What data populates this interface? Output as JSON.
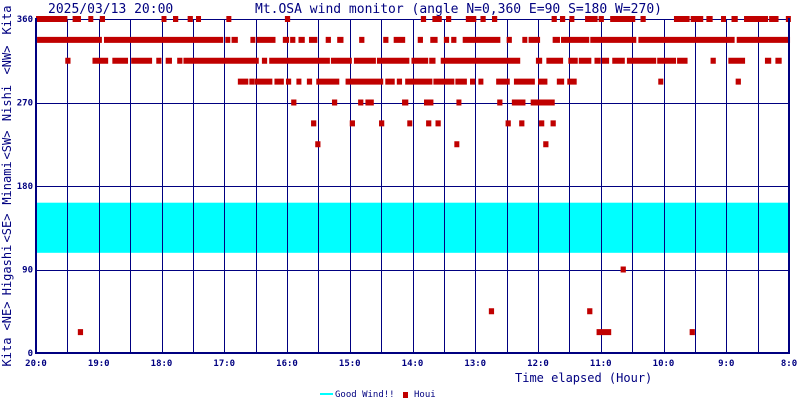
{
  "header": {
    "datetime": "2025/03/13 20:00",
    "title": "Mt.OSA wind monitor (angle N=0,360 E=90 S=180 W=270)"
  },
  "chart_data": {
    "type": "scatter",
    "title": "Mt.OSA wind monitor (angle N=0,360 E=90 S=180 W=270)",
    "xlabel": "Time elapsed (Hour)",
    "ylabel_words": [
      "Kita",
      "<NE>",
      "Higashi",
      "<SE>",
      "Minami",
      "<SW>",
      "Nishi",
      "<NW>",
      "Kita"
    ],
    "ylim": [
      0,
      360
    ],
    "xlim_minutes": [
      0,
      720
    ],
    "y_ticks": [
      "0",
      "90",
      "180",
      "270",
      "360"
    ],
    "y_tick_values": [
      0,
      90,
      180,
      270,
      360
    ],
    "x_ticks": [
      "20:0",
      "19:0",
      "18:0",
      "17:0",
      "16:0",
      "15:0",
      "14:0",
      "13:0",
      "12:0",
      "11:0",
      "10:0",
      "9:0",
      "8:0"
    ],
    "grid": true,
    "legend": [
      {
        "label": "Good Wind!!",
        "color": "#00ffff",
        "kind": "line"
      },
      {
        "label": "Houi",
        "color": "#c00000",
        "kind": "square"
      }
    ],
    "legend_placement": "bottom-center",
    "good_wind_range": [
      108,
      162
    ],
    "series": [
      {
        "name": "Houi",
        "color": "#c00000",
        "note": "segments are [start_minute, end_minute] elapsed since 20:00 at the given angle",
        "rows": [
          {
            "angle": 360,
            "segments": [
              [
                0,
                30
              ],
              [
                35,
                43
              ],
              [
                50,
                54
              ],
              [
                61,
                66
              ],
              [
                120,
                124
              ],
              [
                131,
                136
              ],
              [
                145,
                150
              ],
              [
                153,
                157
              ],
              [
                182,
                186
              ],
              [
                238,
                243
              ],
              [
                368,
                373
              ],
              [
                379,
                388
              ],
              [
                392,
                397
              ],
              [
                411,
                421
              ],
              [
                425,
                430
              ],
              [
                436,
                441
              ],
              [
                493,
                498
              ],
              [
                501,
                506
              ],
              [
                510,
                514
              ],
              [
                525,
                537
              ],
              [
                538,
                543
              ],
              [
                549,
                573
              ],
              [
                578,
                583
              ],
              [
                610,
                625
              ],
              [
                626,
                638
              ],
              [
                641,
                647
              ],
              [
                655,
                659
              ],
              [
                665,
                671
              ],
              [
                677,
                700
              ],
              [
                701,
                710
              ],
              [
                717,
                720
              ]
            ]
          },
          {
            "angle": 337.5,
            "segments": [
              [
                1,
                63
              ],
              [
                65,
                179
              ],
              [
                181,
                185
              ],
              [
                187,
                193
              ],
              [
                205,
                209
              ],
              [
                211,
                229
              ],
              [
                236,
                242
              ],
              [
                243,
                248
              ],
              [
                251,
                257
              ],
              [
                261,
                269
              ],
              [
                277,
                282
              ],
              [
                288,
                294
              ],
              [
                309,
                314
              ],
              [
                332,
                337
              ],
              [
                342,
                353
              ],
              [
                365,
                370
              ],
              [
                377,
                384
              ],
              [
                390,
                395
              ],
              [
                397,
                402
              ],
              [
                408,
                444
              ],
              [
                450,
                455
              ],
              [
                465,
                469
              ],
              [
                471,
                482
              ],
              [
                494,
                501
              ],
              [
                502,
                529
              ],
              [
                530,
                574
              ],
              [
                576,
                668
              ],
              [
                670,
                721
              ]
            ]
          },
          {
            "angle": 315,
            "segments": [
              [
                28,
                33
              ],
              [
                54,
                69
              ],
              [
                73,
                88
              ],
              [
                91,
                111
              ],
              [
                115,
                120
              ],
              [
                124,
                130
              ],
              [
                135,
                140
              ],
              [
                141,
                213
              ],
              [
                216,
                221
              ],
              [
                223,
                281
              ],
              [
                282,
                302
              ],
              [
                304,
                325
              ],
              [
                326,
                357
              ],
              [
                359,
                375
              ],
              [
                376,
                382
              ],
              [
                387,
                463
              ],
              [
                478,
                484
              ],
              [
                488,
                504
              ],
              [
                509,
                518
              ],
              [
                519,
                531
              ],
              [
                534,
                540
              ],
              [
                541,
                548
              ],
              [
                551,
                563
              ],
              [
                565,
                593
              ],
              [
                594,
                612
              ],
              [
                613,
                623
              ],
              [
                645,
                650
              ],
              [
                662,
                678
              ],
              [
                697,
                703
              ],
              [
                707,
                713
              ]
            ]
          },
          {
            "angle": 292.5,
            "segments": [
              [
                193,
                203
              ],
              [
                204,
                208
              ],
              [
                209,
                226
              ],
              [
                228,
                237
              ],
              [
                239,
                244
              ],
              [
                249,
                253
              ],
              [
                259,
                264
              ],
              [
                268,
                290
              ],
              [
                296,
                332
              ],
              [
                334,
                343
              ],
              [
                345,
                350
              ],
              [
                353,
                379
              ],
              [
                380,
                400
              ],
              [
                401,
                412
              ],
              [
                415,
                420
              ],
              [
                423,
                427
              ],
              [
                440,
                453
              ],
              [
                457,
                477
              ],
              [
                480,
                489
              ],
              [
                498,
                505
              ],
              [
                508,
                517
              ],
              [
                595,
                599
              ],
              [
                669,
                674
              ]
            ]
          },
          {
            "angle": 270,
            "segments": [
              [
                244,
                249
              ],
              [
                283,
                288
              ],
              [
                308,
                313
              ],
              [
                315,
                323
              ],
              [
                350,
                356
              ],
              [
                371,
                380
              ],
              [
                402,
                406
              ],
              [
                441,
                446
              ],
              [
                455,
                468
              ],
              [
                473,
                496
              ]
            ]
          },
          {
            "angle": 247.5,
            "segments": [
              [
                263,
                268
              ],
              [
                300,
                305
              ],
              [
                328,
                333
              ],
              [
                355,
                359
              ],
              [
                373,
                378
              ],
              [
                382,
                387
              ],
              [
                449,
                454
              ],
              [
                462,
                467
              ],
              [
                481,
                486
              ],
              [
                492,
                497
              ]
            ]
          },
          {
            "angle": 225,
            "segments": [
              [
                267,
                272
              ],
              [
                400,
                404
              ],
              [
                485,
                490
              ]
            ]
          },
          {
            "angle": 90,
            "segments": [
              [
                559,
                564
              ]
            ]
          },
          {
            "angle": 45,
            "segments": [
              [
                433,
                438
              ],
              [
                527,
                532
              ]
            ]
          },
          {
            "angle": 22.5,
            "segments": [
              [
                40,
                45
              ],
              [
                536,
                550
              ],
              [
                625,
                630
              ]
            ]
          }
        ]
      }
    ]
  },
  "colors": {
    "axis": "#000080",
    "good_wind": "#00ffff",
    "houi": "#c00000"
  }
}
